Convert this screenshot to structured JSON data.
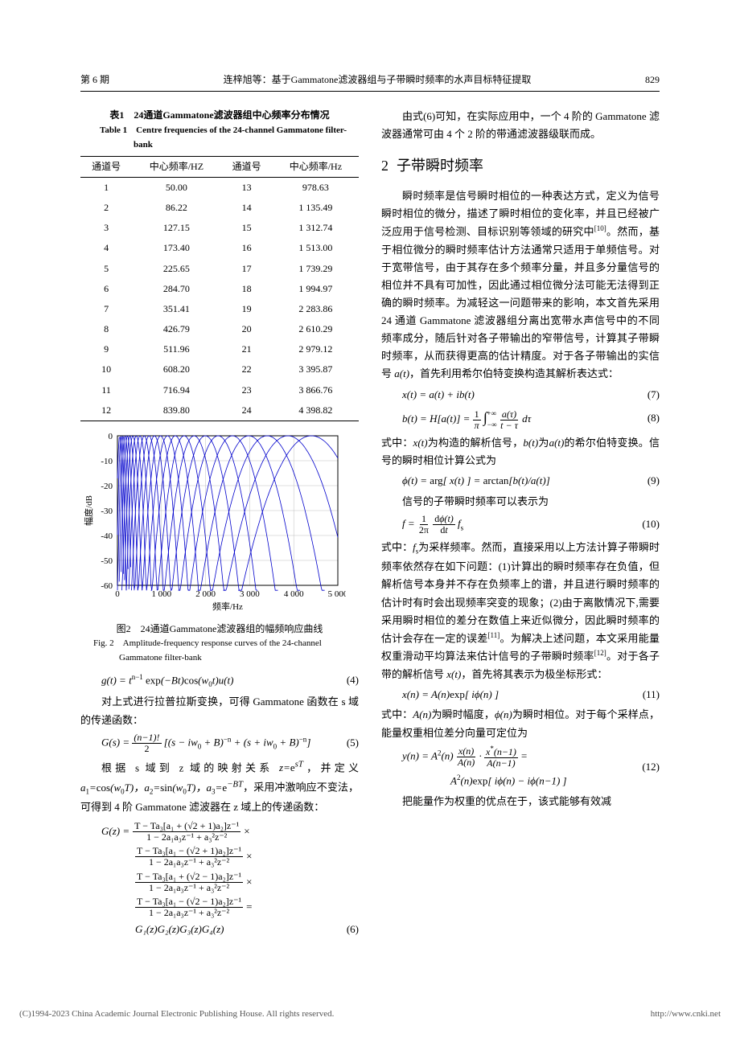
{
  "header": {
    "issue": "第 6 期",
    "title": "连梓旭等：基于Gammatone滤波器组与子带瞬时频率的水声目标特征提取",
    "page": "829"
  },
  "table": {
    "caption_cn": "表1　24通道Gammatone滤波器组中心频率分布情况",
    "caption_en": "Table 1　Centre frequencies of the 24-channel Gammatone filter-bank",
    "headers": {
      "ch": "通道号",
      "cf_hz_upper": "中心频率/HZ",
      "cf_hz": "中心频率/Hz"
    },
    "rows": [
      {
        "a": "1",
        "af": "50.00",
        "b": "13",
        "bf": "978.63"
      },
      {
        "a": "2",
        "af": "86.22",
        "b": "14",
        "bf": "1 135.49"
      },
      {
        "a": "3",
        "af": "127.15",
        "b": "15",
        "bf": "1 312.74"
      },
      {
        "a": "4",
        "af": "173.40",
        "b": "16",
        "bf": "1 513.00"
      },
      {
        "a": "5",
        "af": "225.65",
        "b": "17",
        "bf": "1 739.29"
      },
      {
        "a": "6",
        "af": "284.70",
        "b": "18",
        "bf": "1 994.97"
      },
      {
        "a": "7",
        "af": "351.41",
        "b": "19",
        "bf": "2 283.86"
      },
      {
        "a": "8",
        "af": "426.79",
        "b": "20",
        "bf": "2 610.29"
      },
      {
        "a": "9",
        "af": "511.96",
        "b": "21",
        "bf": "2 979.12"
      },
      {
        "a": "10",
        "af": "608.20",
        "b": "22",
        "bf": "3 395.87"
      },
      {
        "a": "11",
        "af": "716.94",
        "b": "23",
        "bf": "3 866.76"
      },
      {
        "a": "12",
        "af": "839.80",
        "b": "24",
        "bf": "4 398.82"
      }
    ]
  },
  "figure": {
    "type": "line",
    "caption_cn": "图2　24通道Gammatone滤波器组的幅频响应曲线",
    "caption_en": "Fig. 2　Amplitude-frequency response curves of the 24-channel Gammatone filter-bank",
    "xlabel": "频率/Hz",
    "ylabel": "幅度/dB",
    "xlim": [
      0,
      5000
    ],
    "ylim": [
      -60,
      0
    ],
    "xticks": [
      0,
      1000,
      2000,
      3000,
      4000,
      5000
    ],
    "xtick_labels": [
      "0",
      "1 000",
      "2 000",
      "3 000",
      "4 000",
      "5 000"
    ],
    "yticks": [
      0,
      -10,
      -20,
      -30,
      -40,
      -50,
      -60
    ],
    "line_color": "#0000cc",
    "line_width": 0.8,
    "grid_color": "#bfbfbf",
    "background_color": "#ffffff",
    "centers": [
      50.0,
      86.22,
      127.15,
      173.4,
      225.65,
      284.7,
      351.41,
      426.79,
      511.96,
      608.2,
      716.94,
      839.8,
      978.63,
      1135.49,
      1312.74,
      1513.0,
      1739.29,
      1994.97,
      2283.86,
      2610.29,
      2979.12,
      3395.87,
      3866.76,
      4398.82
    ],
    "label_fontsize": 11
  },
  "left": {
    "p1": "对上式进行拉普拉斯变换，可得 Gammatone 函数在 s 域的传递函数：",
    "p2_a": "根据 s 域到 z 域的映射关系 ",
    "p2_b": "，并定义 ",
    "p2_c": "，采用冲激响应不变法，可得到 4 阶 Gammatone 滤波器在 z 域上的传递函数：",
    "zmap": "z=e^{sT}",
    "a1": "a₁=cos(w₀T)",
    "a2": "a₂=sin(w₀T)",
    "a3": "a₃=e^{-BT}"
  },
  "eq": {
    "e4_body": "g(t) = t^{n−1} exp(−Bt) cos(w₀t) u(t)",
    "e4_num": "(4)",
    "e5_body": "G(s) = ((n−1)! / 2) [(s − iw₀ + B)^{−n} + (s + iw₀ + B)^{−n}]",
    "e5_num": "(5)",
    "e6_lead": "G(z) =",
    "e6_frac1_num": "T − Ta₃[a₁ + (√2 + 1)a₂]z⁻¹",
    "e6_frac_den": "1 − 2a₁a₃z⁻¹ + a₃²z⁻²",
    "e6_frac2_num": "T − Ta₃[a₁ − (√2 + 1)a₂]z⁻¹",
    "e6_frac3_num": "T − Ta₃[a₁ + (√2 − 1)a₂]z⁻¹",
    "e6_frac4_num": "T − Ta₃[a₁ − (√2 − 1)a₂]z⁻¹",
    "e6_times": "×",
    "e6_eq": "=",
    "e6_last": "G₁(z)G₂(z)G₃(z)G₄(z)",
    "e6_num": "(6)",
    "e7_body": "x(t) = a(t) + ib(t)",
    "e7_num": "(7)",
    "e8_lhs": "b(t) = H[a(t)] =",
    "e8_frac1": "1/π",
    "e8_int": "∫_{−∞}^{+∞}",
    "e8_frac2_num": "a(τ)",
    "e8_frac2_den": "t − τ",
    "e8_dtau": "dτ",
    "e8_num": "(8)",
    "e9_body": "ϕ(t) = arg[ x(t) ] = arctan[b(t)/a(t)]",
    "e9_num": "(9)",
    "e10_lhs": "f =",
    "e10_f1n": "1",
    "e10_f1d": "2π",
    "e10_f2n": "dϕ(t)",
    "e10_f2d": "dt",
    "e10_fs": "fₛ",
    "e10_num": "(10)",
    "e11_body": "x(n) = A(n) exp[ iϕ(n) ]",
    "e11_num": "(11)",
    "e12_l1": "y(n) = A²(n) (x(n)/A(n)) · (x*(n−1)/A(n−1)) =",
    "e12_l2": "A²(n) exp[ iϕ(n) − iϕ(n−1) ]",
    "e12_num": "(12)"
  },
  "right": {
    "p0": "由式(6)可知，在实际应用中，一个 4 阶的 Gammatone 滤波器通常可由 4 个 2 阶的带通滤波器级联而成。",
    "sec2_num": "2",
    "sec2_title": "子带瞬时频率",
    "p1": "瞬时频率是信号瞬时相位的一种表达方式，定义为信号瞬时相位的微分，描述了瞬时相位的变化率，并且已经被广泛应用于信号检测、目标识别等领域的研究中",
    "p1b": "。然而，基于相位微分的瞬时频率估计方法通常只适用于单频信号。对于宽带信号，由于其存在多个频率分量，并且多分量信号的相位并不具有可加性，因此通过相位微分法可能无法得到正确的瞬时频率。为减轻这一问题带来的影响，本文首先采用 24 通道 Gammatone 滤波器组分离出宽带水声信号中的不同频率成分，随后针对各子带输出的窄带信号，计算其子带瞬时频率，从而获得更高的估计精度。对于各子带输出的实信号 ",
    "p1c": "，首先利用希尔伯特变换构造其解析表达式：",
    "cite10": "[10]",
    "at": "a(t)",
    "p2": "式中：",
    "xt": "x(t)",
    "p2b": "为构造的解析信号，",
    "bt": "b(t)",
    "p2c": "为",
    "p2d": "的希尔伯特变换。信号的瞬时相位计算公式为",
    "p3": "信号的子带瞬时频率可以表示为",
    "p4a": "式中：",
    "fs": "fₛ",
    "p4b": "为采样频率。然而，直接采用以上方法计算子带瞬时频率依然存在如下问题：(1)计算出的瞬时频率存在负值，但解析信号本身并不存在负频率上的谱，并且进行瞬时频率的估计时有时会出现频率突变的现象；(2)由于离散情况下,需要采用瞬时相位的差分在数值上来近似微分，因此瞬时频率的估计会存在一定的误差",
    "cite11": "[11]",
    "p4c": "。为解决上述问题，本文采用能量权重滑动平均算法来估计信号的子带瞬时频率",
    "cite12": "[12]",
    "p4d": "。对于各子带的解析信号 ",
    "xt2": "x(t)",
    "p4e": "，首先将其表示为极坐标形式：",
    "p5a": "式中：",
    "An": "A(n)",
    "p5b": "为瞬时幅度，",
    "phin": "ϕ(n)",
    "p5c": "为瞬时相位。对于每个采样点，能量权重相位差分向量可定位为",
    "p6": "把能量作为权重的优点在于，该式能够有效减"
  },
  "footer": {
    "left": "(C)1994-2023 China Academic Journal Electronic Publishing House. All rights reserved.",
    "right": "http://www.cnki.net"
  }
}
